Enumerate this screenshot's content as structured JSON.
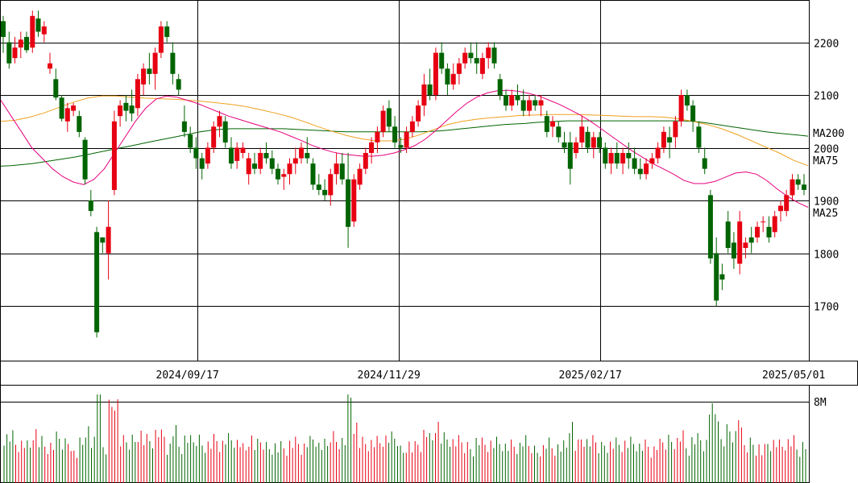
{
  "chart_data": {
    "type": "candlestick",
    "price_axis": {
      "ticks": [
        "2200",
        "2100",
        "2000",
        "1900",
        "1800",
        "1700"
      ],
      "ylim": [
        1610,
        2280
      ]
    },
    "date_axis": {
      "labels": [
        "2024/09/17",
        "2024/11/29",
        "2025/02/17",
        "2025/05/01"
      ]
    },
    "volume_axis": {
      "tick": "8M"
    },
    "legend": [
      {
        "name": "MA200",
        "color": "#006400"
      },
      {
        "name": "MA75",
        "color": "#f0a020"
      },
      {
        "name": "MA25",
        "color": "#e6007e"
      }
    ],
    "colors": {
      "up": "#e60012",
      "down": "#006400"
    },
    "candles": [
      [
        2240,
        2250,
        2180,
        2210
      ],
      [
        2200,
        2220,
        2150,
        2160
      ],
      [
        2170,
        2210,
        2160,
        2190
      ],
      [
        2190,
        2220,
        2170,
        2205
      ],
      [
        2210,
        2220,
        2180,
        2185
      ],
      [
        2190,
        2260,
        2180,
        2250
      ],
      [
        2245,
        2260,
        2210,
        2220
      ],
      [
        2215,
        2240,
        2200,
        2230
      ],
      [
        2150,
        2180,
        2140,
        2160
      ],
      [
        2130,
        2150,
        2090,
        2095
      ],
      [
        2095,
        2100,
        2050,
        2055
      ],
      [
        2050,
        2085,
        2030,
        2075
      ],
      [
        2070,
        2085,
        2060,
        2080
      ],
      [
        2060,
        2070,
        2020,
        2030
      ],
      [
        2015,
        2020,
        1930,
        1940
      ],
      [
        1900,
        1920,
        1870,
        1880
      ],
      [
        1840,
        1850,
        1640,
        1650
      ],
      [
        1830,
        1830,
        1800,
        1820
      ],
      [
        1800,
        1900,
        1750,
        1850
      ],
      [
        1920,
        2070,
        1910,
        2050
      ],
      [
        2060,
        2090,
        2040,
        2080
      ],
      [
        2085,
        2100,
        2050,
        2070
      ],
      [
        2080,
        2110,
        2050,
        2065
      ],
      [
        2075,
        2140,
        2060,
        2130
      ],
      [
        2120,
        2160,
        2100,
        2150
      ],
      [
        2150,
        2180,
        2120,
        2140
      ],
      [
        2140,
        2190,
        2110,
        2180
      ],
      [
        2180,
        2240,
        2170,
        2230
      ],
      [
        2230,
        2240,
        2200,
        2210
      ],
      [
        2180,
        2200,
        2120,
        2140
      ],
      [
        2130,
        2140,
        2100,
        2110
      ],
      [
        2050,
        2080,
        2020,
        2030
      ],
      [
        2025,
        2040,
        1990,
        2000
      ],
      [
        2000,
        2020,
        1960,
        1980
      ],
      [
        1980,
        1990,
        1940,
        1960
      ],
      [
        1970,
        2010,
        1960,
        2000
      ],
      [
        2000,
        2050,
        1990,
        2040
      ],
      [
        2040,
        2070,
        2020,
        2060
      ],
      [
        2050,
        2060,
        2000,
        2010
      ],
      [
        2000,
        2020,
        1960,
        1970
      ],
      [
        1975,
        2010,
        1960,
        2000
      ],
      [
        1990,
        2010,
        1980,
        2000
      ],
      [
        1950,
        1990,
        1930,
        1980
      ],
      [
        1970,
        1990,
        1950,
        1960
      ],
      [
        1960,
        2000,
        1950,
        1990
      ],
      [
        1990,
        2010,
        1970,
        1980
      ],
      [
        1980,
        1995,
        1950,
        1960
      ],
      [
        1960,
        1970,
        1930,
        1940
      ],
      [
        1945,
        1960,
        1920,
        1950
      ],
      [
        1950,
        1980,
        1930,
        1970
      ],
      [
        1970,
        2000,
        1950,
        1980
      ],
      [
        1980,
        2010,
        1970,
        2000
      ],
      [
        1990,
        2020,
        1970,
        1980
      ],
      [
        1970,
        1980,
        1920,
        1930
      ],
      [
        1930,
        1950,
        1910,
        1920
      ],
      [
        1920,
        1940,
        1900,
        1910
      ],
      [
        1910,
        1960,
        1890,
        1950
      ],
      [
        1950,
        1990,
        1930,
        1970
      ],
      [
        1970,
        1990,
        1930,
        1940
      ],
      [
        1940,
        1990,
        1810,
        1850
      ],
      [
        1860,
        1950,
        1850,
        1940
      ],
      [
        1930,
        1970,
        1920,
        1960
      ],
      [
        1960,
        2000,
        1950,
        1990
      ],
      [
        1990,
        2020,
        1970,
        2010
      ],
      [
        2010,
        2040,
        1990,
        2030
      ],
      [
        2030,
        2080,
        2020,
        2070
      ],
      [
        2075,
        2090,
        2030,
        2040
      ],
      [
        2040,
        2060,
        2000,
        2010
      ],
      [
        2005,
        2020,
        1990,
        2000
      ],
      [
        2000,
        2040,
        1990,
        2030
      ],
      [
        2030,
        2060,
        2020,
        2050
      ],
      [
        2050,
        2090,
        2040,
        2080
      ],
      [
        2080,
        2140,
        2060,
        2120
      ],
      [
        2120,
        2150,
        2090,
        2100
      ],
      [
        2100,
        2190,
        2090,
        2180
      ],
      [
        2180,
        2200,
        2140,
        2150
      ],
      [
        2150,
        2160,
        2100,
        2120
      ],
      [
        2120,
        2160,
        2110,
        2140
      ],
      [
        2140,
        2170,
        2120,
        2160
      ],
      [
        2160,
        2190,
        2150,
        2180
      ],
      [
        2180,
        2200,
        2160,
        2170
      ],
      [
        2170,
        2200,
        2140,
        2160
      ],
      [
        2140,
        2180,
        2130,
        2170
      ],
      [
        2170,
        2200,
        2150,
        2190
      ],
      [
        2190,
        2200,
        2150,
        2160
      ],
      [
        2130,
        2140,
        2090,
        2100
      ],
      [
        2100,
        2110,
        2070,
        2080
      ],
      [
        2080,
        2110,
        2070,
        2100
      ],
      [
        2100,
        2120,
        2080,
        2090
      ],
      [
        2090,
        2110,
        2060,
        2070
      ],
      [
        2070,
        2100,
        2060,
        2090
      ],
      [
        2090,
        2100,
        2070,
        2080
      ],
      [
        2080,
        2100,
        2060,
        2090
      ],
      [
        2060,
        2070,
        2020,
        2030
      ],
      [
        2040,
        2060,
        2020,
        2050
      ],
      [
        2040,
        2050,
        2010,
        2020
      ],
      [
        2010,
        2030,
        1990,
        2000
      ],
      [
        2010,
        2030,
        1930,
        1960
      ],
      [
        1990,
        2020,
        1980,
        2010
      ],
      [
        2010,
        2060,
        2000,
        2040
      ],
      [
        2030,
        2040,
        1990,
        2000
      ],
      [
        2000,
        2030,
        1980,
        2020
      ],
      [
        2020,
        2030,
        1990,
        2000
      ],
      [
        2000,
        2010,
        1960,
        1970
      ],
      [
        1970,
        2000,
        1950,
        1990
      ],
      [
        1990,
        2010,
        1960,
        1970
      ],
      [
        1970,
        2000,
        1950,
        1990
      ],
      [
        1990,
        2010,
        1960,
        1980
      ],
      [
        1980,
        2000,
        1950,
        1960
      ],
      [
        1960,
        1980,
        1940,
        1950
      ],
      [
        1950,
        1980,
        1940,
        1970
      ],
      [
        1970,
        1990,
        1960,
        1980
      ],
      [
        1980,
        2010,
        1970,
        2000
      ],
      [
        2000,
        2040,
        1990,
        2030
      ],
      [
        2020,
        2040,
        1980,
        2010
      ],
      [
        2020,
        2060,
        2000,
        2050
      ],
      [
        2050,
        2110,
        2040,
        2100
      ],
      [
        2100,
        2110,
        2070,
        2080
      ],
      [
        2080,
        2090,
        2030,
        2050
      ],
      [
        2040,
        2050,
        1990,
        2000
      ],
      [
        1980,
        2000,
        1950,
        1960
      ],
      [
        1910,
        1920,
        1780,
        1790
      ],
      [
        1800,
        1830,
        1700,
        1710
      ],
      [
        1760,
        1780,
        1730,
        1750
      ],
      [
        1860,
        1880,
        1800,
        1810
      ],
      [
        1820,
        1840,
        1770,
        1790
      ],
      [
        1780,
        1880,
        1760,
        1860
      ],
      [
        1810,
        1830,
        1790,
        1820
      ],
      [
        1830,
        1850,
        1800,
        1820
      ],
      [
        1830,
        1860,
        1820,
        1850
      ],
      [
        1860,
        1870,
        1840,
        1860
      ],
      [
        1850,
        1870,
        1820,
        1830
      ],
      [
        1840,
        1880,
        1830,
        1870
      ],
      [
        1880,
        1900,
        1860,
        1890
      ],
      [
        1880,
        1920,
        1870,
        1910
      ],
      [
        1910,
        1950,
        1900,
        1940
      ],
      [
        1940,
        1950,
        1920,
        1930
      ],
      [
        1930,
        1950,
        1910,
        1920
      ]
    ],
    "ma25": [
      2090,
      2060,
      2030,
      2000,
      1980,
      1960,
      1945,
      1935,
      1930,
      1940,
      1960,
      1990,
      2020,
      2050,
      2075,
      2092,
      2098,
      2096,
      2090,
      2084,
      2076,
      2068,
      2060,
      2054,
      2048,
      2042,
      2036,
      2030,
      2022,
      2014,
      2005,
      1998,
      1992,
      1988,
      1986,
      1984,
      1984,
      1986,
      1990,
      1996,
      2004,
      2016,
      2032,
      2050,
      2068,
      2084,
      2096,
      2104,
      2108,
      2109,
      2107,
      2103,
      2098,
      2090,
      2082,
      2072,
      2062,
      2050,
      2036,
      2022,
      2008,
      1994,
      1982,
      1970,
      1960,
      1950,
      1938,
      1932,
      1932,
      1936,
      1944,
      1952,
      1954,
      1950,
      1938,
      1922,
      1908,
      1896,
      1887
    ],
    "ma75": [
      2050,
      2052,
      2058,
      2066,
      2076,
      2086,
      2094,
      2098,
      2098,
      2096,
      2094,
      2093,
      2092,
      2090,
      2088,
      2085,
      2082,
      2078,
      2072,
      2066,
      2059,
      2050,
      2040,
      2031,
      2023,
      2017,
      2013,
      2013,
      2016,
      2024,
      2034,
      2044,
      2050,
      2054,
      2057,
      2059,
      2061,
      2062,
      2063,
      2063,
      2063,
      2062,
      2061,
      2060,
      2059,
      2059,
      2058,
      2055,
      2050,
      2044,
      2036,
      2026,
      2014,
      2002,
      1990,
      1976,
      1966
    ],
    "ma200": [
      1965,
      1966,
      1968,
      1970,
      1973,
      1976,
      1979,
      1982,
      1986,
      1990,
      1994,
      1998,
      2002,
      2006,
      2010,
      2014,
      2018,
      2022,
      2026,
      2030,
      2033,
      2035,
      2036,
      2036,
      2036,
      2036,
      2036,
      2036,
      2035,
      2034,
      2033,
      2032,
      2031,
      2030,
      2030,
      2030,
      2030,
      2030,
      2030,
      2030,
      2030,
      2031,
      2032,
      2034,
      2036,
      2038,
      2040,
      2042,
      2044,
      2045,
      2046,
      2048,
      2049,
      2050,
      2051,
      2051,
      2051,
      2051,
      2051,
      2051,
      2051,
      2051,
      2051,
      2051,
      2051,
      2051,
      2050,
      2048,
      2045,
      2042,
      2039,
      2036,
      2033,
      2030,
      2028,
      2026,
      2024,
      2022
    ]
  }
}
